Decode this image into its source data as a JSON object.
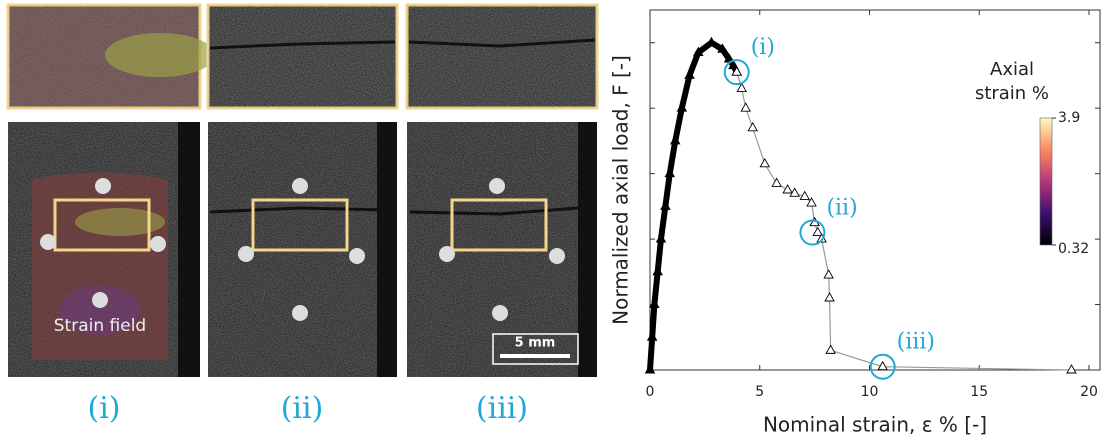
{
  "images": {
    "captions": [
      "(i)",
      "(ii)",
      "(iii)"
    ],
    "overlay_label": "Strain field",
    "scale_bar": "5 mm"
  },
  "chart_data": {
    "type": "line",
    "x_label": "Nominal strain, ε % [-]",
    "y_label": "Normalized axial load, F [-]",
    "xlim": [
      0,
      20.5
    ],
    "xticks": [
      0,
      5,
      10,
      15,
      20
    ],
    "ylim": [
      0,
      1.1
    ],
    "yticks": [
      0,
      0.2,
      0.4,
      0.6,
      0.8,
      1.0
    ],
    "series": [
      {
        "color": "#000000",
        "x": [
          0,
          0.1,
          0.2,
          0.35,
          0.5,
          0.7,
          0.9,
          1.15,
          1.45,
          1.8,
          2.2,
          2.8,
          3.3,
          3.6,
          3.8,
          3.95
        ],
        "values": [
          0,
          0.1,
          0.2,
          0.3,
          0.4,
          0.5,
          0.6,
          0.7,
          0.8,
          0.9,
          0.97,
          1.0,
          0.98,
          0.95,
          0.93,
          0.91
        ]
      },
      {
        "color": "#999999",
        "x": [
          3.95,
          4.18,
          4.36,
          4.68,
          5.23,
          5.77,
          6.27,
          6.59,
          7.05,
          7.36,
          7.5,
          7.64,
          7.82,
          8.14,
          8.18,
          8.23,
          10.6,
          19.2
        ],
        "values": [
          0.91,
          0.86,
          0.8,
          0.74,
          0.63,
          0.57,
          0.55,
          0.54,
          0.53,
          0.51,
          0.45,
          0.42,
          0.4,
          0.29,
          0.22,
          0.06,
          0.01,
          0.0
        ]
      }
    ],
    "annotations": [
      {
        "text": "(i)",
        "x": 3.95,
        "y": 0.91
      },
      {
        "text": "(ii)",
        "x": 7.4,
        "y": 0.42
      },
      {
        "text": "(iii)",
        "x": 10.6,
        "y": 0.01
      }
    ],
    "annotation_color": "#1fa8d8",
    "colorbar": {
      "title": [
        "Axial",
        "strain %"
      ],
      "min": 0.32,
      "max": 3.9
    }
  }
}
